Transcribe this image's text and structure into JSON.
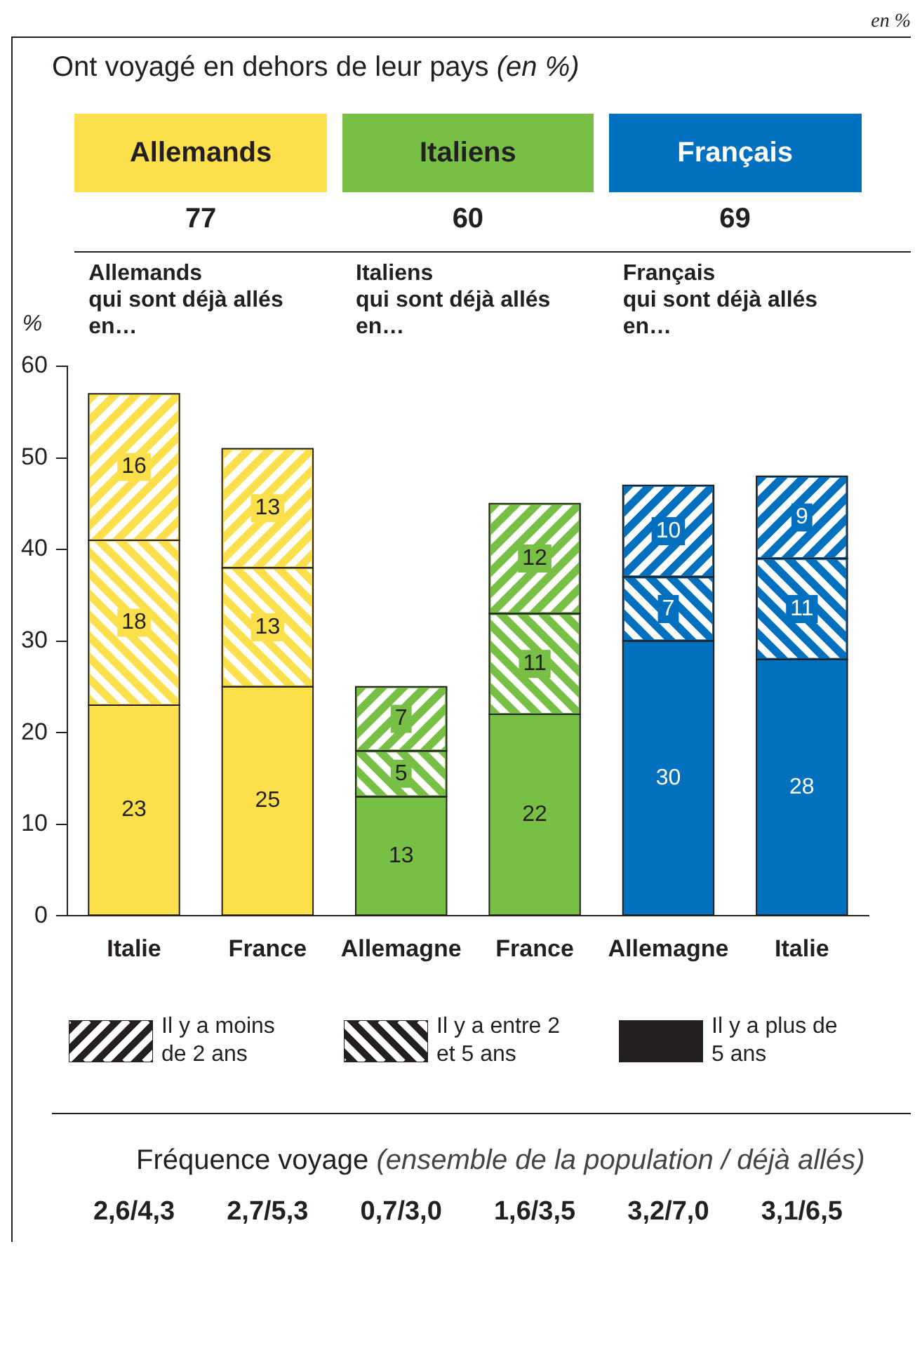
{
  "chart_data": {
    "type": "bar",
    "title": "Ont voyagé en dehors de leur pays (en %)",
    "ylabel": "%",
    "categories": [
      "Italie",
      "France",
      "Allemagne",
      "France",
      "Allemagne",
      "Italie"
    ],
    "stacked": true,
    "series": [
      {
        "colors": [
          "#fbdf4b",
          "#fbdf4b",
          "#77bf45",
          "#77bf45",
          "#0070bf",
          "#0070bf"
        ],
        "values": [
          23,
          25,
          13,
          22,
          30,
          28
        ]
      },
      {
        "colors": [
          "#fbdf4b",
          "#fbdf4b",
          "#77bf45",
          "#77bf45",
          "#0070bf",
          "#0070bf"
        ],
        "values": [
          18,
          13,
          5,
          11,
          7,
          11
        ]
      },
      {
        "colors": [
          "#fbdf4b",
          "#fbdf4b",
          "#77bf45",
          "#77bf45",
          "#0070bf",
          "#0070bf"
        ],
        "values": [
          16,
          13,
          7,
          12,
          10,
          9
        ]
      }
    ],
    "ylim": [
      0,
      60
    ],
    "yticks": [
      0,
      10,
      20,
      30,
      40,
      50,
      60
    ],
    "grid": false,
    "data_labels": true,
    "annotations": [
      "en %",
      "Allemands",
      "Italiens",
      "Français",
      "77",
      "60",
      "69",
      "Allemands\nqui sont déjà allés\nen…",
      "Italiens\nqui sont déjà allés\nen…",
      "Français\nqui sont déjà allés\nen…",
      "Fréquence voyage (ensemble de la population / déjà allés)",
      "2,6/4,3",
      "2,7/5,3",
      "0,7/3,0",
      "1,6/3,5",
      "3,2/7,0",
      "3,1/6,5",
      "Il y a plus de 5 ans",
      "Il y a entre 2 et 5 ans",
      "Il y a moins de 2 ans"
    ]
  }
}
